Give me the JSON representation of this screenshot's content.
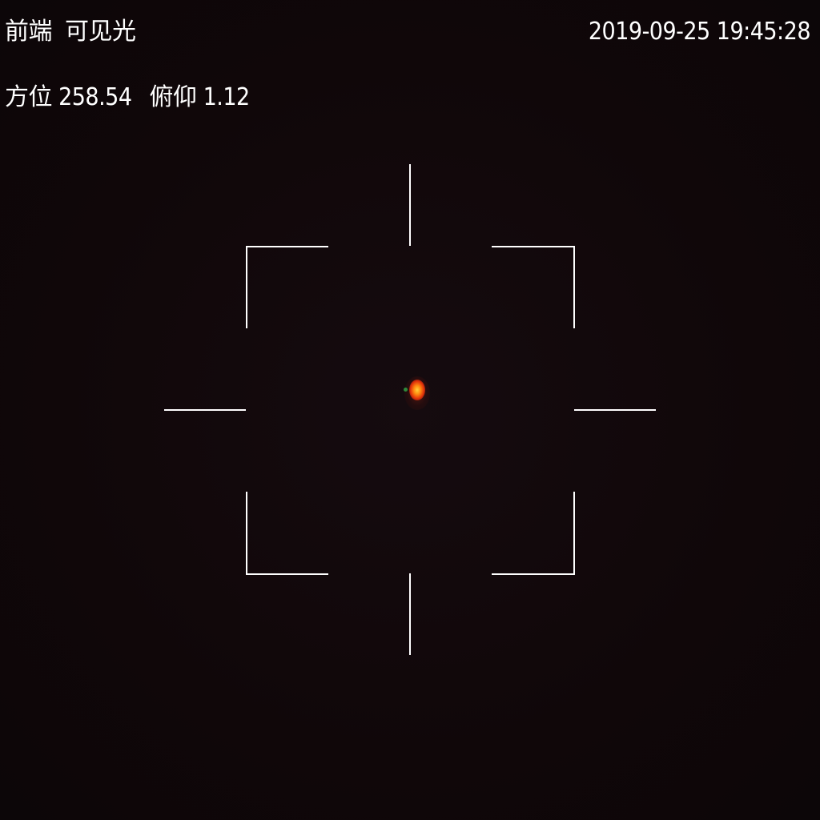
{
  "osd": {
    "source": "前端",
    "mode": "可见光",
    "azimuth_label": "方位",
    "azimuth_value": "258.54",
    "elevation_label": "俯仰",
    "elevation_value": "1.12",
    "datetime": "2019-09-25 19:45:28"
  },
  "colors": {
    "background": "#0f080b",
    "overlay_text": "#ffffff",
    "reticle": "#ffffff",
    "target_core": "#ffd23a",
    "target_edge": "#e0300a"
  },
  "icons": {
    "reticle": "crosshair-reticle",
    "target": "bright-target-spot"
  }
}
